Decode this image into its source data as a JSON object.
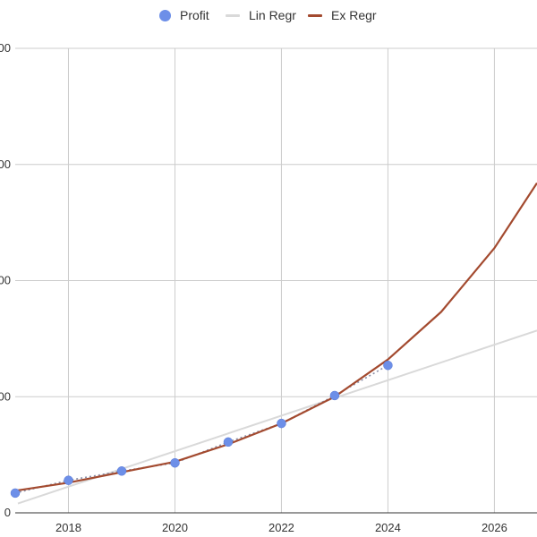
{
  "chart_data": {
    "type": "line",
    "title": "",
    "xlabel": "",
    "ylabel": "",
    "xlim": [
      2017,
      2026.8
    ],
    "ylim": [
      0,
      400
    ],
    "x_ticks": [
      "2018",
      "2020",
      "2022",
      "2024",
      "2026"
    ],
    "y_tick_labels": [
      "0",
      "00",
      "00",
      "00",
      "00"
    ],
    "grid": true,
    "legend_position": "top",
    "series": [
      {
        "name": "Profit",
        "kind": "scatter",
        "color": "#6d8fe8",
        "trendline": "dotted",
        "points": [
          [
            2017,
            17
          ],
          [
            2018,
            28
          ],
          [
            2019,
            36
          ],
          [
            2020,
            43
          ],
          [
            2021,
            61
          ],
          [
            2022,
            77
          ],
          [
            2023,
            101
          ],
          [
            2024,
            127
          ]
        ]
      },
      {
        "name": "Lin Regr",
        "kind": "line",
        "color": "#d9d9d9",
        "points": [
          [
            2017.05,
            8
          ],
          [
            2026.8,
            157
          ]
        ]
      },
      {
        "name": "Ex Regr",
        "kind": "line",
        "color": "#a34a2f",
        "points": [
          [
            2017,
            19
          ],
          [
            2018,
            26
          ],
          [
            2019,
            35
          ],
          [
            2020,
            44
          ],
          [
            2021,
            59
          ],
          [
            2022,
            77
          ],
          [
            2023,
            100
          ],
          [
            2024,
            132
          ],
          [
            2025,
            173
          ],
          [
            2026,
            228
          ],
          [
            2026.8,
            284
          ]
        ]
      }
    ]
  }
}
